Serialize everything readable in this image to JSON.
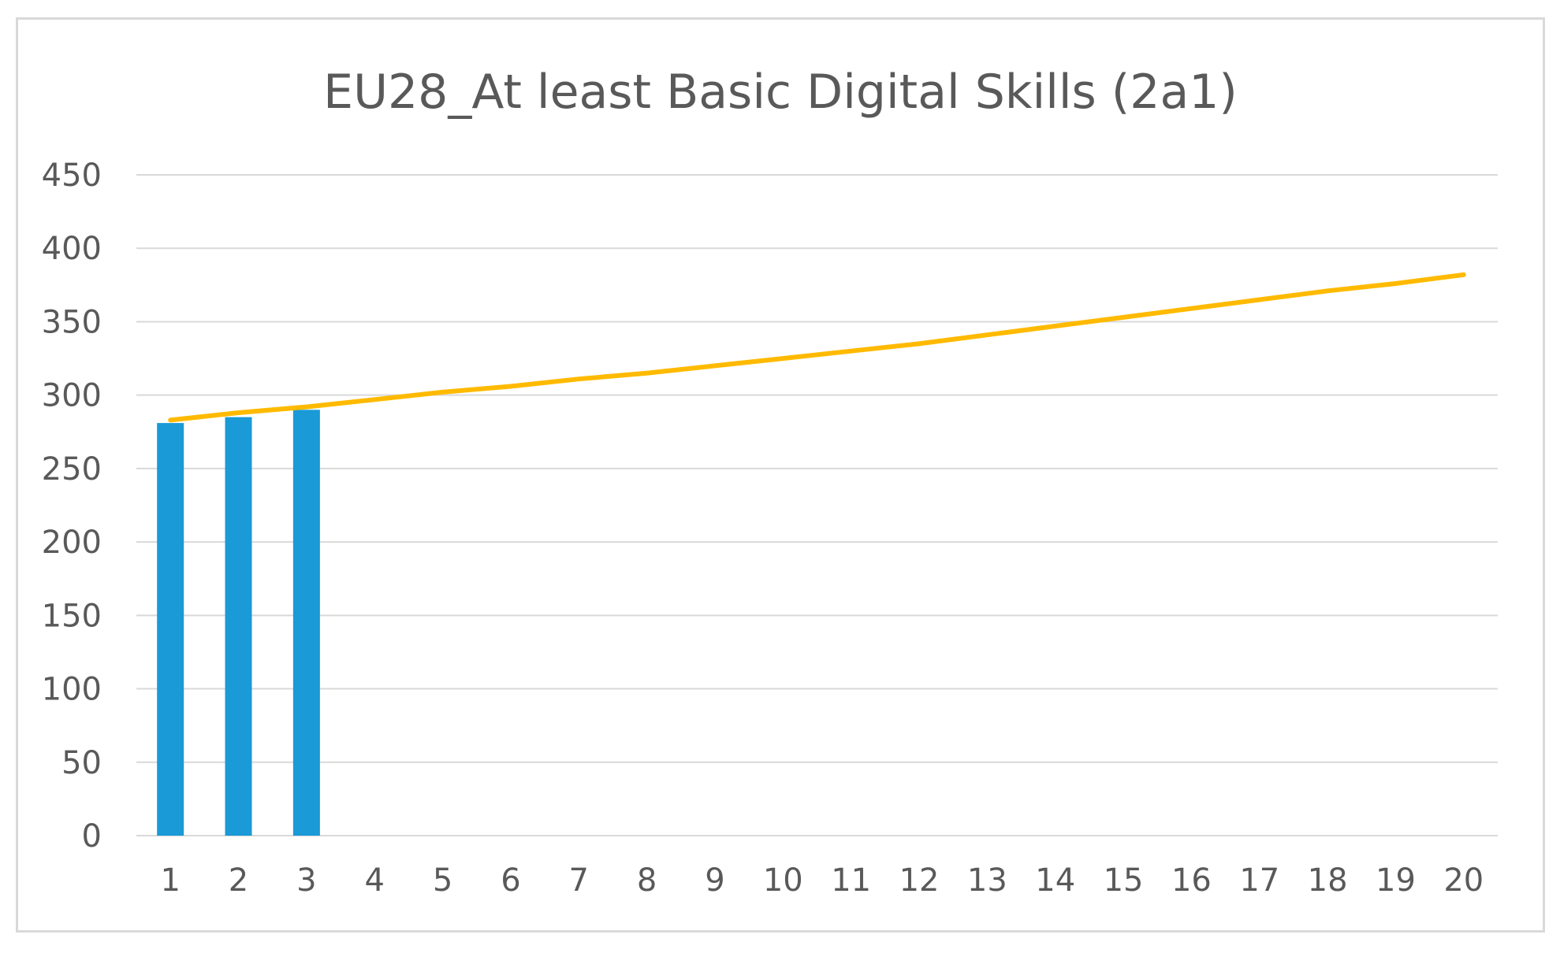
{
  "chart_data": {
    "type": "bar",
    "title": "EU28_At least Basic Digital Skills (2a1)",
    "xlabel": "",
    "ylabel": "",
    "categories": [
      "1",
      "2",
      "3",
      "4",
      "5",
      "6",
      "7",
      "8",
      "9",
      "10",
      "11",
      "12",
      "13",
      "14",
      "15",
      "16",
      "17",
      "18",
      "19",
      "20"
    ],
    "y_ticks": [
      "0",
      "50",
      "100",
      "150",
      "200",
      "250",
      "300",
      "350",
      "400",
      "450"
    ],
    "ylim": [
      0,
      450
    ],
    "grid": true,
    "legend": "none",
    "series": [
      {
        "type": "bar",
        "color": "#1a9ad6",
        "values": [
          281,
          285,
          290,
          null,
          null,
          null,
          null,
          null,
          null,
          null,
          null,
          null,
          null,
          null,
          null,
          null,
          null,
          null,
          null,
          null
        ]
      },
      {
        "type": "line",
        "color": "#ffba00",
        "values": [
          283,
          288,
          292,
          297,
          302,
          306,
          311,
          315,
          320,
          325,
          330,
          335,
          341,
          347,
          353,
          359,
          365,
          371,
          376,
          382
        ]
      }
    ]
  }
}
